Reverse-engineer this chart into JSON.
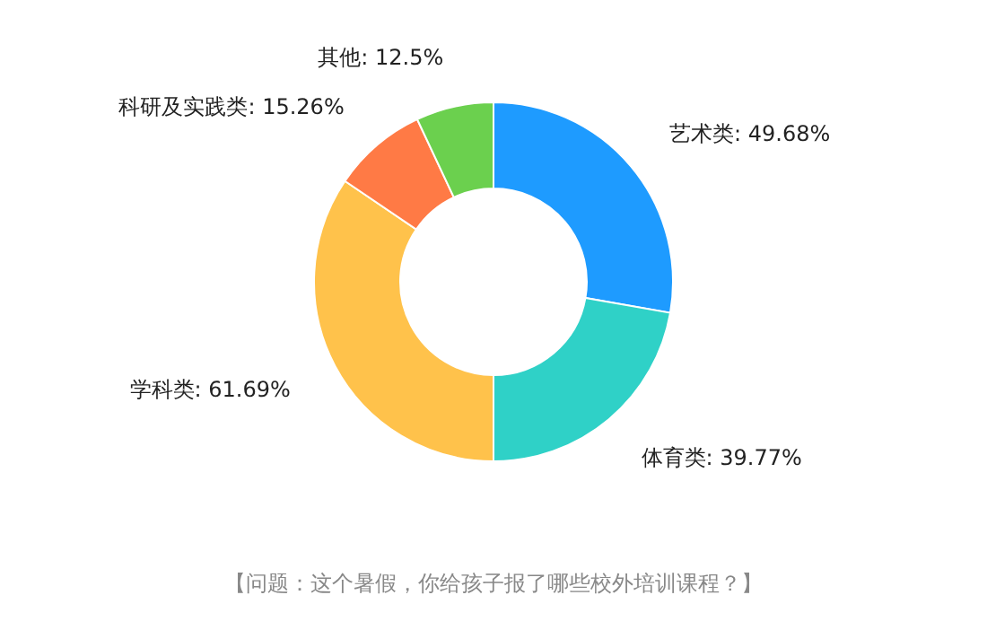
{
  "chart_data": {
    "type": "donut",
    "categories": [
      "艺术类",
      "体育类",
      "学科类",
      "科研及实践类",
      "其他"
    ],
    "values": [
      49.68,
      39.77,
      61.69,
      15.26,
      12.5
    ],
    "value_labels": [
      "49.68%",
      "39.77%",
      "61.69%",
      "15.26%",
      "12.5%"
    ],
    "colors": [
      "#1e9bff",
      "#2fd1c7",
      "#ffc24b",
      "#ff7a45",
      "#6bd04e"
    ],
    "annotations": [
      "【问题：这个暑假，你给孩子报了哪些校外培训课程？】"
    ]
  }
}
